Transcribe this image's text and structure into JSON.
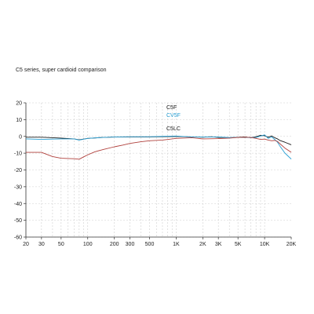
{
  "chart_data": {
    "type": "line",
    "title": "C5 series, super cardioid comparison",
    "xlabel": "",
    "ylabel": "",
    "x_scale": "log",
    "xlim": [
      20,
      20000
    ],
    "ylim": [
      -60,
      20
    ],
    "grid": true,
    "x_ticks": [
      20,
      30,
      50,
      100,
      200,
      300,
      500,
      1000,
      2000,
      3000,
      5000,
      10000,
      20000
    ],
    "x_tick_labels": [
      "20",
      "30",
      "50",
      "100",
      "200",
      "300",
      "500",
      "1K",
      "2K",
      "3K",
      "5K",
      "10K",
      "20K"
    ],
    "y_ticks": [
      20,
      10,
      0,
      -10,
      -20,
      -30,
      -40,
      -50,
      -60
    ],
    "y_tick_labels": [
      "20",
      "10",
      "0",
      "-10",
      "-20",
      "-30",
      "-40",
      "-50",
      "-60"
    ],
    "series": [
      {
        "name": "C5F",
        "color": "#1a1a1a",
        "x": [
          20,
          30,
          50,
          70,
          80,
          100,
          150,
          200,
          300,
          500,
          700,
          1000,
          1500,
          2000,
          2500,
          3000,
          4000,
          5000,
          6000,
          7000,
          8000,
          9000,
          10000,
          11000,
          12000,
          13000,
          14000,
          15000,
          17000,
          20000
        ],
        "y": [
          -0.5,
          -0.5,
          -1,
          -1.5,
          -2,
          -1.2,
          -0.6,
          -0.4,
          -0.3,
          -0.3,
          -0.2,
          0,
          -0.3,
          -0.5,
          -0.2,
          -0.6,
          -0.8,
          -0.5,
          -0.3,
          -0.8,
          -0.2,
          0.6,
          0.4,
          -0.5,
          0.3,
          -0.8,
          -1.5,
          -2.5,
          -3.5,
          -5
        ]
      },
      {
        "name": "CV5F",
        "color": "#2aa0d4",
        "x": [
          20,
          30,
          50,
          70,
          80,
          100,
          150,
          200,
          300,
          500,
          700,
          1000,
          1500,
          2000,
          2500,
          3000,
          4000,
          5000,
          6000,
          7000,
          8000,
          9000,
          10000,
          11000,
          12000,
          13000,
          14000,
          15000,
          17000,
          20000
        ],
        "y": [
          -1.5,
          -1.8,
          -1.5,
          -1.5,
          -2.2,
          -1.2,
          -0.6,
          -0.4,
          -0.2,
          -0.2,
          0,
          0.2,
          -0.4,
          -0.4,
          -0.3,
          -0.3,
          -0.7,
          -0.6,
          -0.6,
          -0.7,
          -0.6,
          0.2,
          0.9,
          -1.2,
          -0.3,
          -1.8,
          -3.5,
          -6,
          -10,
          -13.5
        ]
      },
      {
        "name": "C5LC",
        "color": "#b0403c",
        "x": [
          20,
          30,
          40,
          50,
          60,
          70,
          80,
          90,
          100,
          120,
          150,
          200,
          250,
          300,
          400,
          500,
          700,
          1000,
          1500,
          2000,
          3000,
          4000,
          5000,
          6000,
          7000,
          8000,
          9000,
          10000,
          11000,
          12000,
          13000,
          14000,
          15000,
          17000,
          20000
        ],
        "y": [
          -9.5,
          -9.5,
          -12,
          -13,
          -13.2,
          -13.3,
          -13.6,
          -12.2,
          -11,
          -9.2,
          -7.8,
          -6.2,
          -5.2,
          -4.2,
          -3.2,
          -2.6,
          -2.2,
          -1.2,
          -0.8,
          -1.5,
          -1.3,
          -1,
          -0.6,
          -0.5,
          -0.6,
          -1.2,
          -1.8,
          -1.6,
          -2.2,
          -2.6,
          -2.4,
          -3,
          -4.5,
          -7,
          -9.5
        ]
      }
    ]
  }
}
